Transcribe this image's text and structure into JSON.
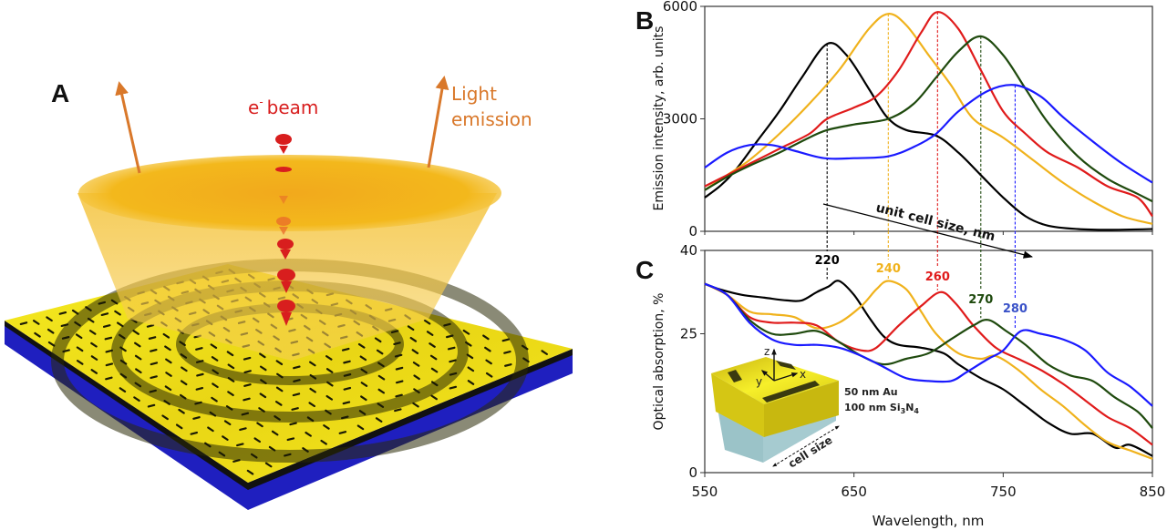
{
  "figure": {
    "panels": {
      "A": {
        "letter": "A",
        "ebeam_label": "e",
        "ebeam_superscript": "-",
        "ebeam_word": "beam",
        "light_label_line1": "Light",
        "light_label_line2": "emission",
        "colors": {
          "ebeam": "#d81e1e",
          "light": "#d9782a",
          "gold": "#f2e31a",
          "substrate": "#1f1fbf",
          "cone": "#f3b81c"
        }
      },
      "B": {
        "letter": "B"
      },
      "C": {
        "letter": "C"
      }
    },
    "annotation_arrow_label": "unit cell size, nm",
    "inset": {
      "axis_labels": [
        "z",
        "x",
        "y"
      ],
      "layer1": "50 nm Au",
      "layer2_prefix": "100 nm Si",
      "layer2_sub1": "3",
      "layer2_mid": "N",
      "layer2_sub2": "4",
      "cell_size_label": "cell size"
    }
  },
  "chart_data": [
    {
      "type": "line",
      "panel": "B",
      "title": "",
      "xlabel": "Wavelength, nm",
      "ylabel": "Emission intensity, arb. units",
      "xlim": [
        550,
        850
      ],
      "ylim": [
        0,
        6000
      ],
      "yticks": [
        0,
        3000,
        6000
      ],
      "ytick_labels": [
        "0",
        "3000",
        "6000"
      ],
      "xticks": [
        550,
        650,
        750,
        850
      ],
      "grid": false,
      "legend": "none",
      "series": [
        {
          "name": "220",
          "color": "#000000",
          "peak_x": 632,
          "x": [
            550,
            560,
            570,
            585,
            600,
            615,
            632,
            645,
            660,
            672,
            685,
            705,
            720,
            735,
            750,
            765,
            780,
            800,
            820,
            850
          ],
          "y": [
            900,
            1200,
            1600,
            2400,
            3200,
            4100,
            5000,
            4700,
            3800,
            3050,
            2700,
            2550,
            2100,
            1500,
            900,
            400,
            150,
            60,
            40,
            60
          ]
        },
        {
          "name": "240",
          "color": "#f0b21c",
          "peak_x": 673,
          "x": [
            550,
            565,
            580,
            600,
            620,
            640,
            660,
            673,
            685,
            700,
            715,
            730,
            750,
            770,
            790,
            810,
            830,
            850
          ],
          "y": [
            1100,
            1500,
            1900,
            2600,
            3400,
            4300,
            5400,
            5800,
            5500,
            4700,
            3900,
            3000,
            2500,
            1900,
            1300,
            800,
            400,
            200
          ]
        },
        {
          "name": "260",
          "color": "#e01b1b",
          "peak_x": 706,
          "x": [
            550,
            565,
            580,
            600,
            620,
            632,
            650,
            665,
            680,
            695,
            706,
            720,
            735,
            750,
            765,
            780,
            800,
            820,
            840,
            850
          ],
          "y": [
            1200,
            1500,
            1800,
            2200,
            2600,
            3000,
            3300,
            3600,
            4300,
            5300,
            5850,
            5400,
            4300,
            3200,
            2600,
            2100,
            1700,
            1200,
            900,
            400
          ]
        },
        {
          "name": "270",
          "color": "#1f4a0e",
          "peak_x": 735,
          "x": [
            550,
            565,
            580,
            600,
            620,
            632,
            650,
            673,
            690,
            705,
            720,
            735,
            750,
            765,
            780,
            800,
            820,
            840,
            850
          ],
          "y": [
            1100,
            1450,
            1750,
            2100,
            2500,
            2700,
            2850,
            3000,
            3400,
            4100,
            4800,
            5200,
            4700,
            3800,
            2900,
            2000,
            1400,
            1000,
            800
          ]
        },
        {
          "name": "280",
          "color": "#1a1aff",
          "peak_x": 758,
          "x": [
            550,
            565,
            580,
            595,
            610,
            630,
            650,
            673,
            690,
            705,
            720,
            740,
            758,
            775,
            790,
            810,
            830,
            850
          ],
          "y": [
            1700,
            2100,
            2300,
            2300,
            2150,
            1950,
            1950,
            2000,
            2250,
            2600,
            3200,
            3750,
            3900,
            3600,
            3050,
            2400,
            1800,
            1300
          ]
        }
      ],
      "peak_markers": [
        632,
        673,
        706,
        735,
        758
      ]
    },
    {
      "type": "line",
      "panel": "C",
      "title": "",
      "xlabel": "Wavelength, nm",
      "ylabel": "Optical absorption, %",
      "xlim": [
        550,
        850
      ],
      "ylim": [
        0,
        40
      ],
      "yticks": [
        0,
        25,
        40
      ],
      "ytick_labels": [
        "0",
        "25",
        "40"
      ],
      "xticks": [
        550,
        650,
        750,
        850
      ],
      "xtick_labels": [
        "550",
        "650",
        "750",
        "850"
      ],
      "grid": false,
      "legend": "none",
      "series": [
        {
          "name": "220",
          "label": "220",
          "color": "#000000",
          "peak_x": 640,
          "peak_y": 34.5,
          "x": [
            550,
            560,
            575,
            590,
            605,
            615,
            625,
            633,
            640,
            650,
            660,
            670,
            680,
            695,
            710,
            720,
            735,
            750,
            765,
            780,
            795,
            810,
            825,
            835,
            850
          ],
          "y": [
            34,
            33,
            32,
            31.5,
            31,
            31,
            32.5,
            33.5,
            34.5,
            32,
            28,
            24.5,
            23,
            22.5,
            21.5,
            19.5,
            17,
            15,
            12,
            9,
            7,
            7,
            4.5,
            5,
            3
          ]
        },
        {
          "name": "240",
          "label": "240",
          "color": "#f0b21c",
          "peak_x": 673,
          "peak_y": 34.5,
          "x": [
            550,
            565,
            580,
            595,
            610,
            625,
            640,
            655,
            665,
            673,
            685,
            695,
            705,
            720,
            735,
            745,
            760,
            775,
            790,
            805,
            820,
            835,
            850
          ],
          "y": [
            34,
            32,
            29,
            28.5,
            28,
            26,
            27,
            30,
            33,
            34.5,
            33,
            29,
            25,
            21.5,
            20.5,
            21,
            18.5,
            15,
            12,
            8.5,
            5.5,
            4,
            2.5
          ]
        },
        {
          "name": "260",
          "label": "260",
          "color": "#e01b1b",
          "peak_x": 708,
          "peak_y": 32.5,
          "x": [
            550,
            565,
            580,
            595,
            610,
            625,
            640,
            655,
            665,
            680,
            695,
            708,
            718,
            730,
            745,
            760,
            775,
            790,
            805,
            820,
            835,
            850
          ],
          "y": [
            34,
            32,
            28,
            27,
            27,
            26.5,
            23.5,
            22,
            22.5,
            26.5,
            30,
            32.5,
            30.5,
            26.5,
            22.5,
            20.5,
            18.5,
            16,
            13,
            10,
            8,
            5
          ]
        },
        {
          "name": "270",
          "label": "270",
          "color": "#1f4a0e",
          "peak_x": 740,
          "peak_y": 27.5,
          "x": [
            550,
            565,
            580,
            595,
            610,
            625,
            640,
            655,
            670,
            685,
            700,
            715,
            730,
            740,
            752,
            765,
            780,
            795,
            810,
            825,
            840,
            850
          ],
          "y": [
            34,
            32,
            27.5,
            25,
            25,
            25.5,
            23.5,
            21,
            19.5,
            20.5,
            21.5,
            24,
            26.5,
            27.5,
            25.5,
            23,
            19.5,
            17.5,
            16.5,
            13.5,
            11,
            8
          ]
        },
        {
          "name": "280",
          "label": "280",
          "color": "#1a1aff",
          "peak_x": 762,
          "peak_y": 25.5,
          "x": [
            550,
            565,
            580,
            595,
            610,
            625,
            640,
            655,
            670,
            685,
            700,
            715,
            725,
            740,
            750,
            762,
            775,
            790,
            805,
            820,
            835,
            850
          ],
          "y": [
            34,
            32,
            27,
            24,
            23,
            23,
            22.5,
            21,
            19,
            17,
            16.5,
            16.5,
            18,
            20.5,
            22,
            25.5,
            25,
            24,
            22,
            18,
            15.5,
            12
          ]
        }
      ]
    }
  ]
}
